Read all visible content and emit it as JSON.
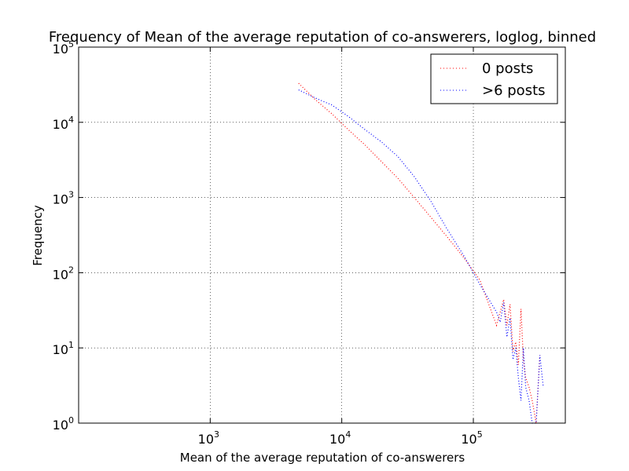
{
  "chart_data": {
    "type": "line",
    "title": "Frequency of Mean of the average reputation of co-answerers, loglog, binned",
    "xlabel": "Mean of the average reputation of co-answerers",
    "ylabel": "Frequency",
    "xscale": "log",
    "yscale": "log",
    "xlim": [
      100,
      500000
    ],
    "ylim": [
      1,
      100000
    ],
    "x_ticks": [
      {
        "base": "10",
        "exp": "3",
        "value": 1000
      },
      {
        "base": "10",
        "exp": "4",
        "value": 10000
      },
      {
        "base": "10",
        "exp": "5",
        "value": 100000
      }
    ],
    "y_ticks": [
      {
        "base": "10",
        "exp": "0",
        "value": 1
      },
      {
        "base": "10",
        "exp": "1",
        "value": 10
      },
      {
        "base": "10",
        "exp": "2",
        "value": 100
      },
      {
        "base": "10",
        "exp": "3",
        "value": 1000
      },
      {
        "base": "10",
        "exp": "4",
        "value": 10000
      },
      {
        "base": "10",
        "exp": "5",
        "value": 100000
      }
    ],
    "grid": true,
    "legend_position": "top-right",
    "series": [
      {
        "name": "0 posts",
        "color": "#ff0000",
        "linestyle": "dotted",
        "x": [
          4700,
          6300,
          8400,
          11200,
          15000,
          20000,
          26700,
          35500,
          47400,
          63200,
          84300,
          112000,
          150000,
          160000,
          170000,
          180000,
          190000,
          200000,
          210000,
          220000,
          230000,
          240000,
          250000,
          265000,
          280000,
          300000,
          320000
        ],
        "y": [
          33000,
          20000,
          13000,
          8000,
          5000,
          3000,
          1800,
          1000,
          550,
          300,
          160,
          80,
          20,
          30,
          44,
          20,
          38,
          9,
          12,
          6,
          33,
          7,
          4,
          3,
          2,
          1,
          8
        ]
      },
      {
        "name": ">6 posts",
        "color": "#0000ff",
        "linestyle": "dotted",
        "x": [
          4700,
          6300,
          8400,
          11200,
          15000,
          20000,
          26700,
          35500,
          47400,
          63200,
          84300,
          112000,
          150000,
          160000,
          170000,
          180000,
          190000,
          200000,
          210000,
          220000,
          230000,
          240000,
          250000,
          265000,
          280000,
          300000,
          320000,
          340000
        ],
        "y": [
          27000,
          21000,
          17000,
          12000,
          8000,
          5500,
          3500,
          1900,
          900,
          380,
          170,
          70,
          30,
          22,
          40,
          14,
          25,
          7,
          10,
          4,
          2,
          10,
          3,
          2,
          1,
          1,
          8,
          3
        ]
      }
    ]
  }
}
